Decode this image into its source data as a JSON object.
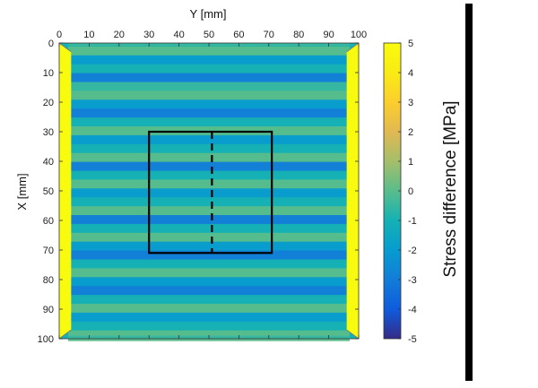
{
  "chart_data": {
    "type": "heatmap",
    "xlabel": "Y [mm]",
    "ylabel": "X [mm]",
    "x_ticks": [
      "0",
      "10",
      "20",
      "30",
      "40",
      "50",
      "60",
      "70",
      "80",
      "90",
      "100"
    ],
    "y_ticks": [
      "0",
      "10",
      "20",
      "30",
      "40",
      "50",
      "60",
      "70",
      "80",
      "90",
      "100"
    ],
    "xlim": [
      0,
      100
    ],
    "ylim": [
      0,
      100
    ],
    "x_axis_position": "top",
    "y_axis_reversed": true,
    "colorbar": {
      "label": "Stress difference [MPa]",
      "range": [
        -5,
        5
      ],
      "ticks": [
        "5",
        "4",
        "3",
        "2",
        "1",
        "0",
        "-1",
        "-2",
        "-3",
        "-4",
        "-5"
      ],
      "colormap": "parula"
    },
    "description_values": {
      "edge_value_y_0_to_3": 5,
      "edge_value_y_97_to_100": 5,
      "horizontal_bands_x_mm": [
        {
          "x": 3,
          "value": 0
        },
        {
          "x": 6,
          "value": -2
        },
        {
          "x": 9,
          "value": -1
        },
        {
          "x": 12,
          "value": -3
        },
        {
          "x": 15,
          "value": -0.5
        },
        {
          "x": 18,
          "value": 0
        },
        {
          "x": 21,
          "value": -2
        },
        {
          "x": 24,
          "value": -3
        },
        {
          "x": 27,
          "value": -1
        },
        {
          "x": 30,
          "value": 0
        },
        {
          "x": 33,
          "value": -2
        },
        {
          "x": 36,
          "value": -1
        },
        {
          "x": 39,
          "value": 0
        },
        {
          "x": 42,
          "value": -3
        },
        {
          "x": 45,
          "value": -1
        },
        {
          "x": 48,
          "value": 0
        },
        {
          "x": 51,
          "value": -2
        },
        {
          "x": 54,
          "value": -1
        },
        {
          "x": 57,
          "value": 0
        },
        {
          "x": 60,
          "value": -3
        },
        {
          "x": 63,
          "value": -1
        },
        {
          "x": 66,
          "value": 0
        },
        {
          "x": 69,
          "value": -2
        },
        {
          "x": 72,
          "value": -3
        },
        {
          "x": 75,
          "value": -1
        },
        {
          "x": 78,
          "value": 0
        },
        {
          "x": 81,
          "value": -2
        },
        {
          "x": 84,
          "value": -3
        },
        {
          "x": 87,
          "value": -1
        },
        {
          "x": 90,
          "value": 0
        },
        {
          "x": 93,
          "value": -2
        },
        {
          "x": 96,
          "value": -1
        },
        {
          "x": 99,
          "value": 0
        }
      ]
    },
    "overlay": {
      "rectangle": {
        "y_min": 30,
        "y_max": 71,
        "x_min": 30,
        "x_max": 71
      },
      "dashed_line": {
        "y": 51,
        "x_min": 30,
        "x_max": 71
      }
    }
  }
}
